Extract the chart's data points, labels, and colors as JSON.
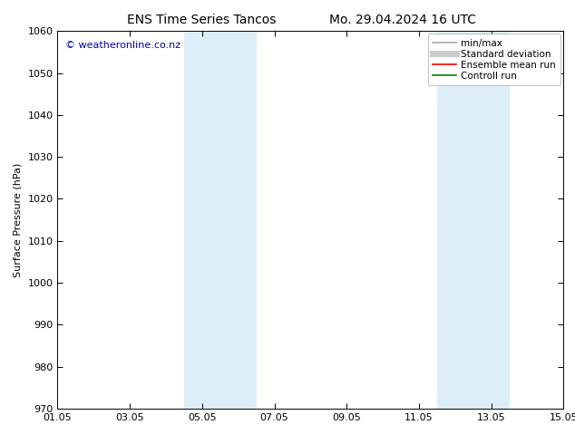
{
  "title": "ENS Time Series Tancos",
  "title_right": "Mo. 29.04.2024 16 UTC",
  "ylabel": "Surface Pressure (hPa)",
  "ylim": [
    970,
    1060
  ],
  "yticks": [
    970,
    980,
    990,
    1000,
    1010,
    1020,
    1030,
    1040,
    1050,
    1060
  ],
  "xlim": [
    0,
    14
  ],
  "xtick_labels": [
    "01.05",
    "03.05",
    "05.05",
    "07.05",
    "09.05",
    "11.05",
    "13.05",
    "15.05"
  ],
  "xtick_positions": [
    0,
    2,
    4,
    6,
    8,
    10,
    12,
    14
  ],
  "shaded_bands": [
    {
      "x_start": 3.5,
      "x_end": 5.5,
      "color": "#ddeef8",
      "alpha": 1.0
    },
    {
      "x_start": 10.5,
      "x_end": 12.5,
      "color": "#ddeef8",
      "alpha": 1.0
    }
  ],
  "watermark": "© weatheronline.co.nz",
  "watermark_color": "#0000bb",
  "legend_entries": [
    {
      "label": "min/max",
      "color": "#aaaaaa",
      "lw": 1.2,
      "linestyle": "-"
    },
    {
      "label": "Standard deviation",
      "color": "#cccccc",
      "lw": 5,
      "linestyle": "-"
    },
    {
      "label": "Ensemble mean run",
      "color": "#ff0000",
      "lw": 1.2,
      "linestyle": "-"
    },
    {
      "label": "Controll run",
      "color": "#008000",
      "lw": 1.2,
      "linestyle": "-"
    }
  ],
  "background_color": "#ffffff",
  "font_size": 8,
  "title_font_size": 10
}
